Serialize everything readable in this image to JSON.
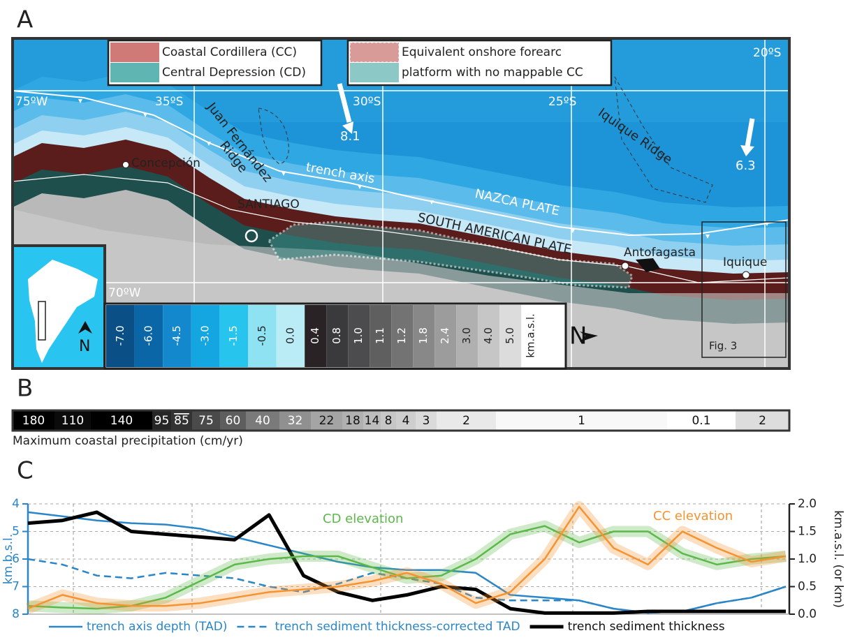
{
  "figure": {
    "panel_a": {
      "label": "A",
      "legend": [
        "Coastal Cordillera (CC)",
        "Central Depression (CD)",
        "Equivalent onshore forearc",
        "platform with no mappable CC"
      ],
      "grid_labels": [
        "75ºW",
        "35ºS",
        "30ºS",
        "25ºS",
        "20ºS",
        "70ºW"
      ],
      "places": [
        "Concepción",
        "SANTIAGO",
        "Antofagasta",
        "Iquique"
      ],
      "features": [
        "Juan Fernández",
        "Ridge",
        "trench axis",
        "NAZCA PLATE",
        "SOUTH AMERICAN PLATE",
        "Iquique Ridge"
      ],
      "velocities": [
        "8.1",
        "6.3"
      ],
      "north": "N",
      "inset_north": "N",
      "fig_ref": "Fig. 3",
      "scale": {
        "values": [
          "-7.0",
          "-6.0",
          "-4.5",
          "-3.0",
          "-1.5",
          "-0.5",
          "0.0",
          "0.4",
          "0.8",
          "1.0",
          "1.1",
          "1.2",
          "1.8",
          "2.4",
          "3.0",
          "4.0",
          "5.0"
        ],
        "unit": "km.a.s.l."
      }
    },
    "panel_b": {
      "label": "B",
      "values": [
        180,
        110,
        140,
        95,
        85,
        75,
        60,
        40,
        32,
        22,
        18,
        14,
        8,
        4,
        3,
        2,
        1,
        0.1,
        2
      ],
      "caption": "Maximum coastal precipitation (cm/yr)"
    },
    "panel_c": {
      "label": "C"
    }
  },
  "chart_data": {
    "type": "line",
    "ylabel": "km.b.s.l.",
    "y2label": "km.a.s.l. (or km)",
    "ylim": [
      8,
      4
    ],
    "yticks": [
      4,
      5,
      6,
      7,
      8
    ],
    "y2lim": [
      0,
      2
    ],
    "y2ticks": [
      {
        "value": 0,
        "label": "0.0"
      },
      {
        "value": 0.5,
        "label": "0.5"
      },
      {
        "value": 1,
        "label": "1.0"
      },
      {
        "value": 1.5,
        "label": "1.5"
      },
      {
        "value": 2,
        "label": "2.0"
      }
    ],
    "grid": true,
    "series": [
      {
        "name": "trench axis depth (TAD)",
        "color": "#2a86c8",
        "style": "solid",
        "values": [
          4.3,
          4.45,
          4.6,
          4.7,
          4.75,
          4.9,
          5.2,
          5.5,
          5.8,
          6.1,
          6.3,
          6.4,
          6.4,
          6.5,
          7.3,
          7.4,
          7.5,
          7.8,
          7.95,
          7.9,
          7.6,
          7.4,
          7.0
        ]
      },
      {
        "name": "trench sediment thickness-corrected TAD",
        "color": "#2a86c8",
        "style": "dashed",
        "values": [
          6.0,
          6.2,
          6.6,
          6.7,
          6.5,
          6.6,
          6.7,
          7.0,
          7.2,
          6.9,
          6.5,
          6.7,
          6.9,
          7.4,
          7.5,
          7.5,
          7.5,
          7.8,
          7.95,
          7.9,
          7.6,
          7.4,
          7.0
        ]
      },
      {
        "name": "trench sediment thickness",
        "color": "#000000",
        "style": "solid",
        "axis": "y2",
        "values": [
          1.65,
          1.7,
          1.85,
          1.5,
          1.45,
          1.4,
          1.35,
          1.8,
          0.7,
          0.4,
          0.25,
          0.35,
          0.5,
          0.45,
          0.1,
          0.02,
          0.02,
          0.02,
          0.05,
          0.05,
          0.05,
          0.05,
          0.05
        ]
      },
      {
        "name": "CD elevation",
        "color": "#5cb84a",
        "style": "band",
        "axis": "y2",
        "values": [
          0.15,
          0.12,
          0.1,
          0.15,
          0.3,
          0.6,
          0.9,
          1.0,
          1.05,
          1.05,
          0.85,
          0.65,
          0.7,
          1.0,
          1.45,
          1.6,
          1.3,
          1.5,
          1.5,
          1.1,
          0.9,
          1.0,
          1.05
        ]
      },
      {
        "name": "CC elevation",
        "color": "#f59331",
        "style": "band",
        "axis": "y2",
        "values": [
          0.1,
          0.35,
          0.2,
          0.15,
          0.15,
          0.2,
          0.3,
          0.4,
          0.45,
          0.5,
          0.6,
          0.75,
          0.55,
          0.2,
          0.4,
          1.0,
          1.95,
          1.2,
          0.9,
          1.5,
          1.2,
          0.95,
          1.05
        ]
      }
    ]
  }
}
